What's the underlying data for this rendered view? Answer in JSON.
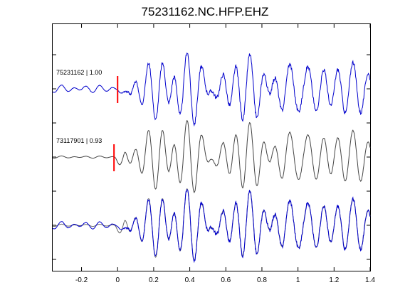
{
  "chart_data": {
    "type": "line",
    "title": "75231162.NC.HFP.EHZ",
    "xlabel": "",
    "ylabel": "",
    "xlim": [
      -0.36,
      1.4
    ],
    "x_ticks": [
      -0.2,
      0,
      0.2,
      0.4,
      0.6,
      0.8,
      1,
      1.2,
      1.4
    ],
    "x_tick_labels": [
      "-0.2",
      "0",
      "0.2",
      "0.4",
      "0.6",
      "0.8",
      "1",
      "1.2",
      "1.4"
    ],
    "grid": false,
    "legend": "none",
    "pick_time": 0,
    "traces": [
      {
        "label": "75231162 | 1.00",
        "color": "#0000cc",
        "pick_offset": 0,
        "pick_color": "#ff0000",
        "pre_noise": 0.1,
        "seed": 1
      },
      {
        "label": "73117901 | 0.93",
        "color": "#444444",
        "pick_offset": -0.02,
        "pick_color": "#ff0000",
        "pre_noise": 0.03,
        "seed": 2
      },
      {
        "label": "",
        "overlay": [
          "#666666",
          "#0000cc"
        ]
      }
    ],
    "colors": {
      "master": "#0000cc",
      "template": "#444444",
      "pick": "#ff0000",
      "axes": "#000000"
    }
  }
}
